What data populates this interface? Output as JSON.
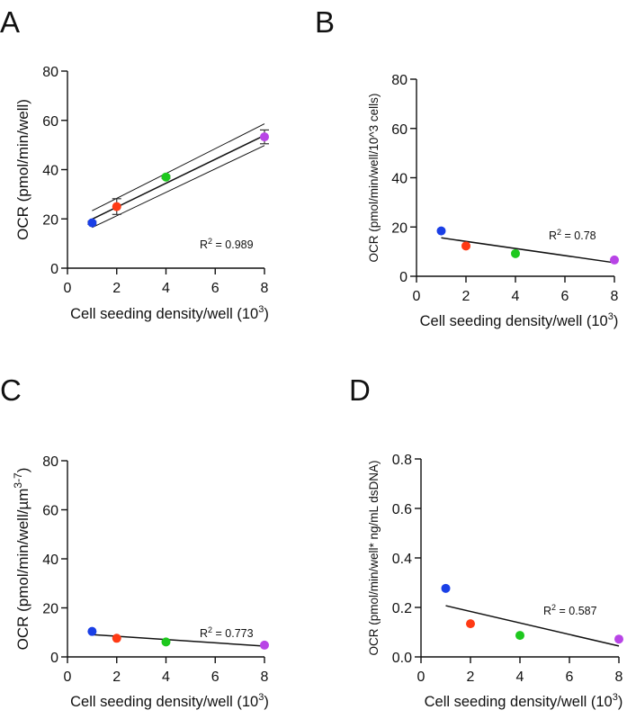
{
  "colors": {
    "point_1": "#1a3fe6",
    "point_2": "#ff3a14",
    "point_3": "#1ec81e",
    "point_4": "#b844e6",
    "line": "#111111"
  },
  "chart_data": [
    {
      "panel": "A",
      "type": "scatter",
      "title": "",
      "xlabel": "Cell seeding density/well (10",
      "xlabel_sup": "3",
      "xlabel_end": ")",
      "ylabel": "OCR (pmol/min/well)",
      "ylabel_sup": "",
      "ylabel_end": "",
      "xlim": [
        0,
        8
      ],
      "ylim": [
        0,
        80
      ],
      "xticks": [
        0,
        2,
        4,
        6,
        8
      ],
      "yticks": [
        0,
        20,
        40,
        60,
        80
      ],
      "xtick_labels": [
        "0",
        "2",
        "4",
        "6",
        "8"
      ],
      "ytick_labels": [
        "0",
        "20",
        "40",
        "60",
        "80"
      ],
      "points": [
        {
          "x": 1,
          "y": 18.4,
          "err": 0.6
        },
        {
          "x": 2,
          "y": 25.0,
          "err": 3.2
        },
        {
          "x": 4,
          "y": 37.0,
          "err": 0.5
        },
        {
          "x": 8,
          "y": 53.3,
          "err": 2.8
        }
      ],
      "fit": {
        "x": [
          1,
          8
        ],
        "y": [
          19.9,
          53.9
        ]
      },
      "ci_upper": {
        "x": [
          1,
          8
        ],
        "y": [
          23.3,
          58.6
        ]
      },
      "ci_lower": {
        "x": [
          1,
          8
        ],
        "y": [
          16.5,
          49.8
        ]
      },
      "annotation": {
        "label": "R",
        "sup": "2",
        "value": " = 0.989"
      },
      "grid": false
    },
    {
      "panel": "B",
      "type": "scatter",
      "title": "",
      "xlabel": "Cell seeding density/well (10",
      "xlabel_sup": "3",
      "xlabel_end": ")",
      "ylabel": "OCR (pmol/min/well/10^3 cells)",
      "ylabel_sup": "",
      "ylabel_end": "",
      "xlim": [
        0,
        8
      ],
      "ylim": [
        0,
        80
      ],
      "xticks": [
        0,
        2,
        4,
        6,
        8
      ],
      "yticks": [
        0,
        20,
        40,
        60,
        80
      ],
      "xtick_labels": [
        "0",
        "2",
        "4",
        "6",
        "8"
      ],
      "ytick_labels": [
        "0",
        "20",
        "40",
        "60",
        "80"
      ],
      "points": [
        {
          "x": 1,
          "y": 18.4
        },
        {
          "x": 2,
          "y": 12.3
        },
        {
          "x": 4,
          "y": 9.2
        },
        {
          "x": 8,
          "y": 6.6
        }
      ],
      "fit": {
        "x": [
          1,
          8
        ],
        "y": [
          15.6,
          5.5
        ]
      },
      "annotation": {
        "label": "R",
        "sup": "2",
        "value": " = 0.78"
      },
      "grid": false
    },
    {
      "panel": "C",
      "type": "scatter",
      "title": "",
      "xlabel": "Cell seeding density/well (10",
      "xlabel_sup": "3",
      "xlabel_end": ")",
      "ylabel": "OCR (pmol/min/well/µm",
      "ylabel_sup": "3-7",
      "ylabel_end": ")",
      "xlim": [
        0,
        8
      ],
      "ylim": [
        0,
        80
      ],
      "xticks": [
        0,
        2,
        4,
        6,
        8
      ],
      "yticks": [
        0,
        20,
        40,
        60,
        80
      ],
      "xtick_labels": [
        "0",
        "2",
        "4",
        "6",
        "8"
      ],
      "ytick_labels": [
        "0",
        "20",
        "40",
        "60",
        "80"
      ],
      "points": [
        {
          "x": 1,
          "y": 10.4
        },
        {
          "x": 2,
          "y": 7.6
        },
        {
          "x": 4,
          "y": 6.1
        },
        {
          "x": 8,
          "y": 4.8
        }
      ],
      "fit": {
        "x": [
          1,
          8
        ],
        "y": [
          9.1,
          4.4
        ]
      },
      "annotation": {
        "label": "R",
        "sup": "2",
        "value": " = 0.773"
      },
      "grid": false
    },
    {
      "panel": "D",
      "type": "scatter",
      "title": "",
      "xlabel": "Cell seeding density/well (10",
      "xlabel_sup": "3",
      "xlabel_end": ")",
      "ylabel": "OCR (pmol/min/well* ng/mL dsDNA)",
      "ylabel_sup": "",
      "ylabel_end": "",
      "xlim": [
        0,
        8
      ],
      "ylim": [
        0,
        0.8
      ],
      "xticks": [
        0,
        2,
        4,
        6,
        8
      ],
      "yticks": [
        0,
        0.2,
        0.4,
        0.6,
        0.8
      ],
      "xtick_labels": [
        "0",
        "2",
        "4",
        "6",
        "8"
      ],
      "ytick_labels": [
        "0.0",
        "0.2",
        "0.4",
        "0.6",
        "0.8"
      ],
      "points": [
        {
          "x": 1,
          "y": 0.277
        },
        {
          "x": 2,
          "y": 0.134
        },
        {
          "x": 4,
          "y": 0.087
        },
        {
          "x": 8,
          "y": 0.072
        }
      ],
      "fit": {
        "x": [
          1,
          8
        ],
        "y": [
          0.207,
          0.044
        ]
      },
      "annotation": {
        "label": "R",
        "sup": "2",
        "value": " = 0.587"
      },
      "grid": false
    }
  ]
}
